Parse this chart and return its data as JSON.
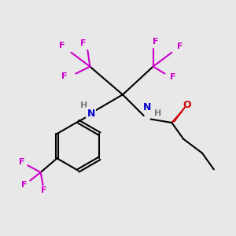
{
  "bg_color": "#e8e8e8",
  "atom_colors": {
    "C": "#000000",
    "H": "#808080",
    "N": "#0000cc",
    "O": "#cc0000",
    "F": "#cc00cc"
  },
  "bond_color": "#000000",
  "ring_color": "#000000"
}
